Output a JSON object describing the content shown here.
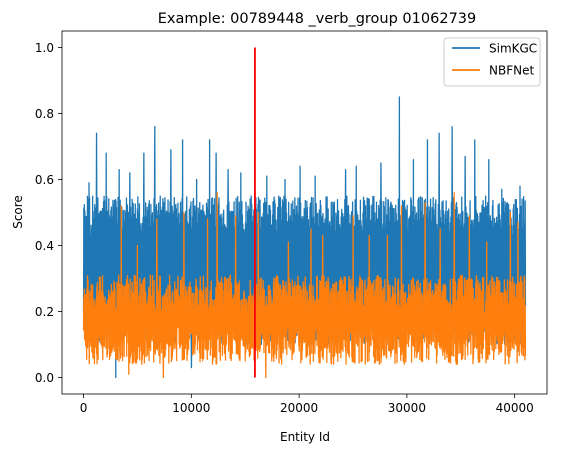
{
  "chart_data": {
    "type": "line",
    "title": "Example: 00789448 _verb_group 01062739",
    "xlabel": "Entity Id",
    "ylabel": "Score",
    "xlim": [
      -2000,
      43000
    ],
    "ylim": [
      -0.05,
      1.05
    ],
    "xticks": [
      0,
      10000,
      20000,
      30000,
      40000
    ],
    "xtick_labels": [
      "0",
      "10000",
      "20000",
      "30000",
      "40000"
    ],
    "yticks": [
      0.0,
      0.2,
      0.4,
      0.6,
      0.8,
      1.0
    ],
    "ytick_labels": [
      "0.0",
      "0.2",
      "0.4",
      "0.6",
      "0.8",
      "1.0"
    ],
    "x_range": [
      0,
      41000
    ],
    "vline": {
      "x": 15900,
      "color": "#ff0000",
      "ymin": 0.0,
      "ymax": 1.0
    },
    "series": [
      {
        "name": "SimKGC",
        "color": "#1f77b4",
        "band": {
          "low": 0.1,
          "high": 0.55
        },
        "peaks": [
          [
            500,
            0.59
          ],
          [
            1200,
            0.74
          ],
          [
            2100,
            0.68
          ],
          [
            3300,
            0.63
          ],
          [
            4300,
            0.62
          ],
          [
            5600,
            0.68
          ],
          [
            6600,
            0.76
          ],
          [
            8100,
            0.69
          ],
          [
            9200,
            0.72
          ],
          [
            10500,
            0.6
          ],
          [
            11700,
            0.72
          ],
          [
            12300,
            0.68
          ],
          [
            13400,
            0.63
          ],
          [
            14600,
            0.62
          ],
          [
            15900,
            0.68
          ],
          [
            17000,
            0.61
          ],
          [
            18700,
            0.6
          ],
          [
            20100,
            0.64
          ],
          [
            21500,
            0.61
          ],
          [
            24300,
            0.63
          ],
          [
            25300,
            0.64
          ],
          [
            27600,
            0.65
          ],
          [
            29300,
            0.85
          ],
          [
            30600,
            0.66
          ],
          [
            31900,
            0.72
          ],
          [
            33000,
            0.74
          ],
          [
            34200,
            0.76
          ],
          [
            35400,
            0.67
          ],
          [
            36300,
            0.72
          ],
          [
            37600,
            0.66
          ],
          [
            38800,
            0.57
          ],
          [
            40500,
            0.58
          ]
        ],
        "dips": [
          [
            3000,
            0.0
          ],
          [
            10000,
            0.03
          ],
          [
            40300,
            0.08
          ]
        ]
      },
      {
        "name": "NBFNet",
        "color": "#ff7f0e",
        "band": {
          "low": 0.04,
          "high": 0.31
        },
        "peaks": [
          [
            3500,
            0.52
          ],
          [
            5000,
            0.4
          ],
          [
            6800,
            0.48
          ],
          [
            9300,
            0.5
          ],
          [
            11500,
            0.48
          ],
          [
            12400,
            0.56
          ],
          [
            14100,
            0.49
          ],
          [
            16200,
            0.5
          ],
          [
            19000,
            0.41
          ],
          [
            21100,
            0.45
          ],
          [
            22200,
            0.43
          ],
          [
            25000,
            0.49
          ],
          [
            26500,
            0.43
          ],
          [
            28200,
            0.43
          ],
          [
            29500,
            0.52
          ],
          [
            31700,
            0.53
          ],
          [
            33100,
            0.45
          ],
          [
            34400,
            0.56
          ],
          [
            35800,
            0.49
          ],
          [
            37400,
            0.41
          ],
          [
            39600,
            0.5
          ],
          [
            40300,
            0.47
          ]
        ],
        "dips": [
          [
            4200,
            0.01
          ],
          [
            7400,
            0.0
          ],
          [
            16900,
            0.0
          ]
        ]
      }
    ],
    "legend": {
      "position": "top-right",
      "entries": [
        "SimKGC",
        "NBFNet"
      ]
    },
    "grid": false
  }
}
